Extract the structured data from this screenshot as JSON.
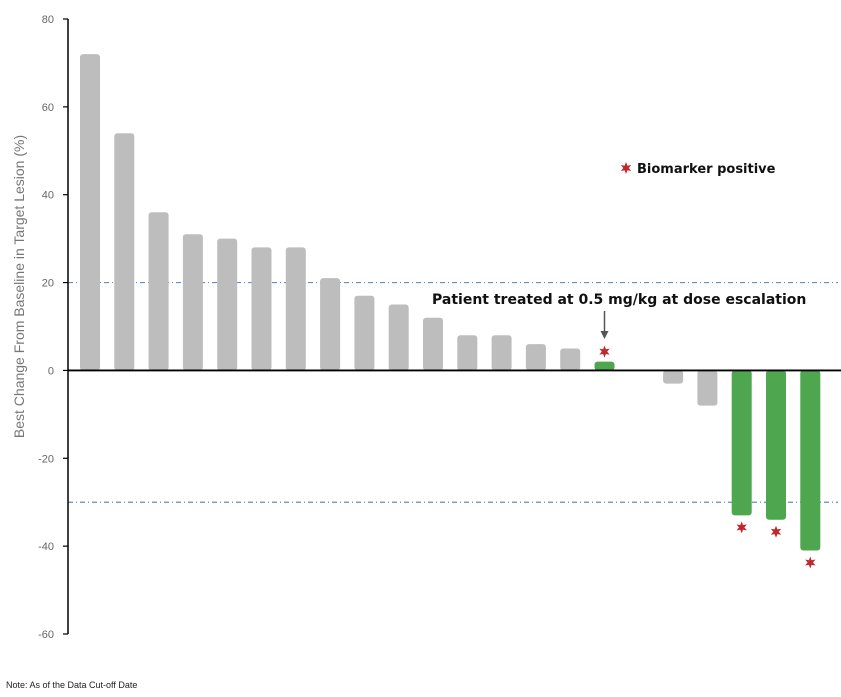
{
  "chart_data": {
    "type": "bar",
    "ylabel": "Best Change From Baseline in Target Lesion (%)",
    "ylim": [
      -60,
      80
    ],
    "yticks": [
      80,
      60,
      40,
      20,
      0,
      -20,
      -40,
      -60
    ],
    "reference_lines": [
      20,
      -30
    ],
    "bars": [
      {
        "value": 72,
        "group": "other",
        "marker": false
      },
      {
        "value": 54,
        "group": "other",
        "marker": false
      },
      {
        "value": 36,
        "group": "other",
        "marker": false
      },
      {
        "value": 31,
        "group": "other",
        "marker": false
      },
      {
        "value": 30,
        "group": "other",
        "marker": false
      },
      {
        "value": 28,
        "group": "other",
        "marker": false
      },
      {
        "value": 28,
        "group": "other",
        "marker": false
      },
      {
        "value": 21,
        "group": "other",
        "marker": false
      },
      {
        "value": 17,
        "group": "other",
        "marker": false
      },
      {
        "value": 15,
        "group": "other",
        "marker": false
      },
      {
        "value": 12,
        "group": "other",
        "marker": false
      },
      {
        "value": 8,
        "group": "other",
        "marker": false
      },
      {
        "value": 8,
        "group": "other",
        "marker": false
      },
      {
        "value": 6,
        "group": "other",
        "marker": false
      },
      {
        "value": 5,
        "group": "other",
        "marker": false
      },
      {
        "value": 2,
        "group": "biomarker",
        "marker": true
      },
      {
        "value": 0,
        "group": "other",
        "marker": false
      },
      {
        "value": -3,
        "group": "other",
        "marker": false
      },
      {
        "value": -8,
        "group": "other",
        "marker": false
      },
      {
        "value": -33,
        "group": "biomarker",
        "marker": true
      },
      {
        "value": -34,
        "group": "biomarker",
        "marker": true
      },
      {
        "value": -41,
        "group": "biomarker",
        "marker": true
      }
    ],
    "legend": {
      "label": "Biomarker positive",
      "placement": "top-right"
    },
    "annotation": {
      "text": "Patient treated at 0.5 mg/kg at dose escalation",
      "bar_index": 15
    },
    "colors": {
      "other": "#bdbdbd",
      "biomarker": "#4ea64e",
      "marker": "#c0282d",
      "reference": "#6b8cbf",
      "axis": "#000000"
    }
  },
  "note": "Note: As of the Data Cut-off Date"
}
